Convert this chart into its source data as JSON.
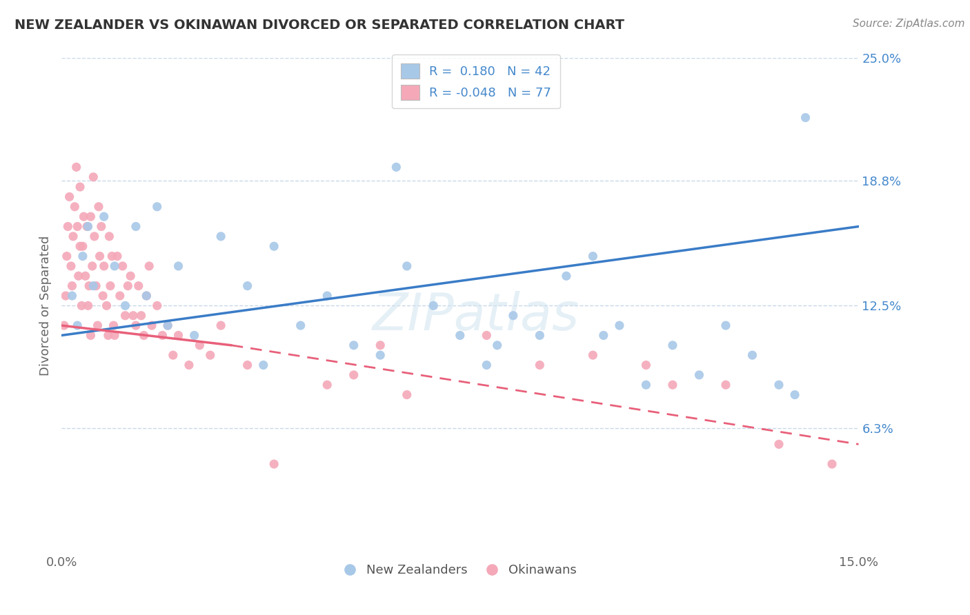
{
  "title": "NEW ZEALANDER VS OKINAWAN DIVORCED OR SEPARATED CORRELATION CHART",
  "source": "Source: ZipAtlas.com",
  "ylabel": "Divorced or Separated",
  "watermark": "ZIPatlas",
  "xlim": [
    0.0,
    15.0
  ],
  "ylim": [
    0.0,
    25.0
  ],
  "x_tick_labels": [
    "0.0%",
    "15.0%"
  ],
  "y_ticks_right": [
    6.3,
    12.5,
    18.8,
    25.0
  ],
  "y_tick_labels_right": [
    "6.3%",
    "12.5%",
    "18.8%",
    "25.0%"
  ],
  "grid_color": "#c8d8e8",
  "background_color": "#ffffff",
  "blue_color": "#a8c8e8",
  "pink_color": "#f4a8b8",
  "blue_line_color": "#3a7cc7",
  "pink_line_color": "#e8607a",
  "title_color": "#333333",
  "label_color": "#4488cc",
  "right_tick_color": "#4488cc",
  "R_nz": 0.18,
  "N_nz": 42,
  "R_ok": -0.048,
  "N_ok": 77,
  "legend_label_nz": "New Zealanders",
  "legend_label_ok": "Okinawans",
  "nz_x": [
    0.2,
    0.3,
    0.4,
    0.5,
    0.6,
    0.8,
    1.0,
    1.2,
    1.4,
    1.6,
    1.8,
    2.0,
    2.2,
    2.5,
    3.0,
    3.5,
    4.0,
    4.5,
    5.0,
    5.5,
    6.0,
    6.5,
    7.0,
    7.5,
    8.0,
    8.5,
    9.0,
    9.5,
    10.0,
    10.5,
    11.0,
    11.5,
    12.0,
    12.5,
    13.0,
    13.5,
    14.0,
    3.8,
    6.3,
    8.2,
    10.2,
    13.8
  ],
  "nz_y": [
    13.0,
    11.5,
    15.0,
    16.5,
    13.5,
    17.0,
    14.5,
    12.5,
    16.5,
    13.0,
    17.5,
    11.5,
    14.5,
    11.0,
    16.0,
    13.5,
    15.5,
    11.5,
    13.0,
    10.5,
    10.0,
    14.5,
    12.5,
    11.0,
    9.5,
    12.0,
    11.0,
    14.0,
    15.0,
    11.5,
    8.5,
    10.5,
    9.0,
    11.5,
    10.0,
    8.5,
    22.0,
    9.5,
    19.5,
    10.5,
    11.0,
    8.0
  ],
  "ok_x": [
    0.05,
    0.08,
    0.1,
    0.12,
    0.15,
    0.18,
    0.2,
    0.22,
    0.25,
    0.28,
    0.3,
    0.32,
    0.35,
    0.38,
    0.4,
    0.42,
    0.45,
    0.48,
    0.5,
    0.52,
    0.55,
    0.58,
    0.6,
    0.62,
    0.65,
    0.68,
    0.7,
    0.72,
    0.75,
    0.78,
    0.8,
    0.85,
    0.88,
    0.9,
    0.92,
    0.95,
    0.98,
    1.0,
    1.05,
    1.1,
    1.15,
    1.2,
    1.25,
    1.3,
    1.35,
    1.4,
    1.45,
    1.5,
    1.55,
    1.6,
    1.65,
    1.7,
    1.8,
    1.9,
    2.0,
    2.1,
    2.2,
    2.4,
    2.6,
    2.8,
    3.0,
    3.5,
    4.0,
    5.0,
    5.5,
    6.0,
    6.5,
    8.0,
    9.0,
    10.0,
    11.0,
    11.5,
    12.5,
    13.5,
    14.5,
    0.35,
    0.55
  ],
  "ok_y": [
    11.5,
    13.0,
    15.0,
    16.5,
    18.0,
    14.5,
    13.5,
    16.0,
    17.5,
    19.5,
    16.5,
    14.0,
    18.5,
    12.5,
    15.5,
    17.0,
    14.0,
    16.5,
    12.5,
    13.5,
    17.0,
    14.5,
    19.0,
    16.0,
    13.5,
    11.5,
    17.5,
    15.0,
    16.5,
    13.0,
    14.5,
    12.5,
    11.0,
    16.0,
    13.5,
    15.0,
    11.5,
    11.0,
    15.0,
    13.0,
    14.5,
    12.0,
    13.5,
    14.0,
    12.0,
    11.5,
    13.5,
    12.0,
    11.0,
    13.0,
    14.5,
    11.5,
    12.5,
    11.0,
    11.5,
    10.0,
    11.0,
    9.5,
    10.5,
    10.0,
    11.5,
    9.5,
    4.5,
    8.5,
    9.0,
    10.5,
    8.0,
    11.0,
    9.5,
    10.0,
    9.5,
    8.5,
    8.5,
    5.5,
    4.5,
    15.5,
    11.0
  ],
  "nz_trend_y0": 11.0,
  "nz_trend_y1": 16.5,
  "ok_trend_y0": 11.5,
  "ok_trend_y1": 5.5,
  "ok_solid_end_x": 3.2,
  "ok_solid_end_y": 10.5
}
